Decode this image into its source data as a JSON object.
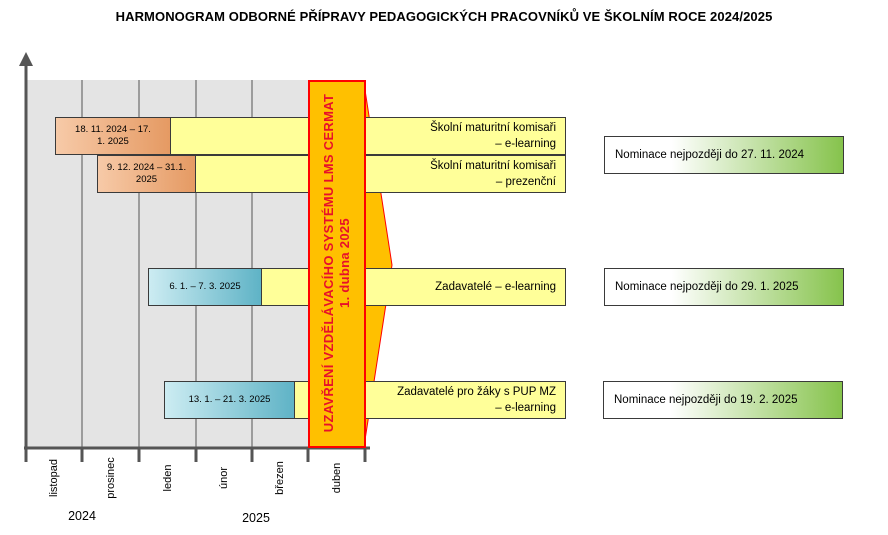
{
  "title": "HARMONOGRAM ODBORNÉ PŘÍPRAVY PEDAGOGICKÝCH PRACOVNÍKŮ VE ŠKOLNÍM ROCE 2024/2025",
  "closure": {
    "line1": "UZAVŘENÍ VZDĚLÁVACÍHO SYSTÉMU LMS CERMAT",
    "line2": "1. dubna 2025"
  },
  "rows": [
    {
      "period": "18. 11. 2024 – 17. 1. 2025",
      "activity_l1": "Školní maturitní komisaři",
      "activity_l2": "– e-learning",
      "nomination": "Nominace nejpozději do 27. 11. 2024"
    },
    {
      "period": "9. 12. 2024 – 31.1. 2025",
      "activity_l1": "Školní maturitní komisaři",
      "activity_l2": "– prezenční",
      "nomination": ""
    },
    {
      "period": "6. 1. – 7. 3. 2025",
      "activity_l1": "Zadavatelé – e-learning",
      "activity_l2": "",
      "nomination": "Nominace nejpozději do 29. 1. 2025"
    },
    {
      "period": "13. 1. – 21. 3. 2025",
      "activity_l1": "Zadavatelé pro žáky s PUP MZ",
      "activity_l2": "– e-learning",
      "nomination": "Nominace nejpozději do 19. 2. 2025"
    }
  ],
  "months": [
    "listopad",
    "prosinec",
    "leden",
    "únor",
    "březen",
    "duben"
  ],
  "years": [
    "2024",
    "2025"
  ],
  "colors": {
    "yellow": "#ffff99",
    "orange": "#ffc000",
    "red": "#ff0000",
    "text_red": "#e8102a",
    "grid_gray": "#e4e4e4",
    "green": "#86c34c"
  }
}
